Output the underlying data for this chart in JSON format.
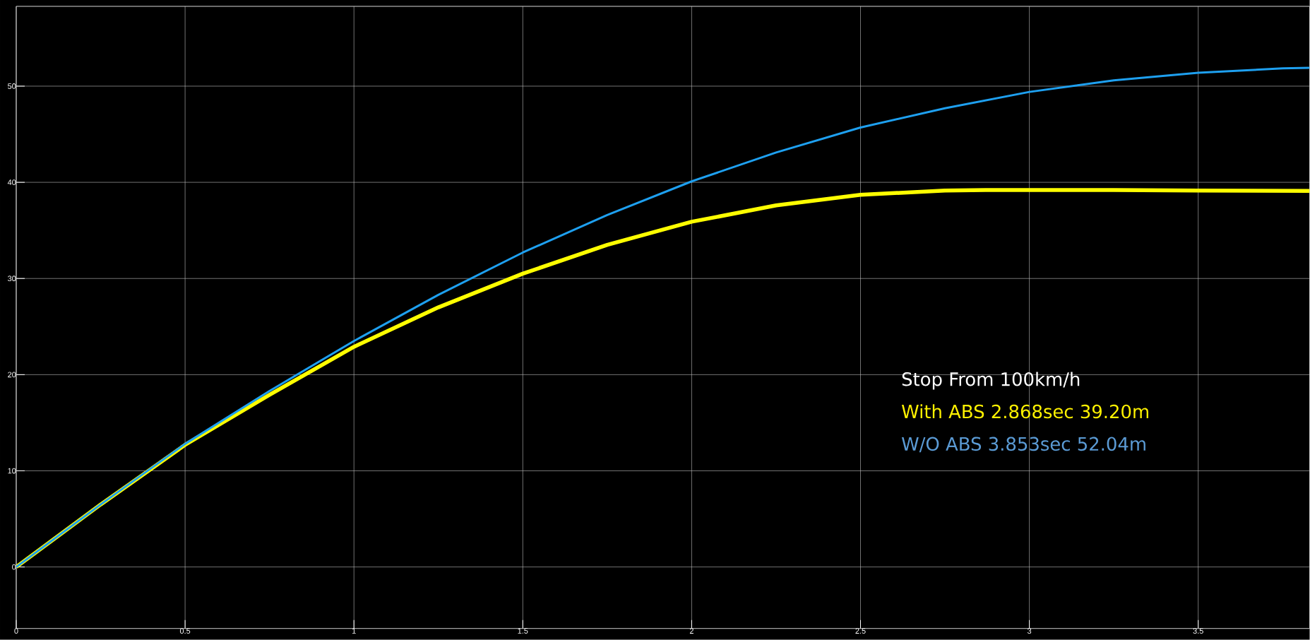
{
  "chart_data": {
    "type": "line",
    "xlim": [
      0,
      3.83
    ],
    "ylim": [
      -6.4,
      58.3
    ],
    "xticks": [
      0,
      0.5,
      1,
      1.5,
      2,
      2.5,
      3,
      3.5
    ],
    "yticks": [
      0,
      10,
      20,
      30,
      40,
      50
    ],
    "grid": true,
    "series": [
      {
        "color": "#ffff00",
        "x": [
          0,
          0.25,
          0.5,
          0.75,
          1,
          1.25,
          1.5,
          1.75,
          2,
          2.25,
          2.5,
          2.75,
          2.87,
          3,
          3.25,
          3.5,
          3.83
        ],
        "values": [
          0,
          6.5,
          12.7,
          17.9,
          22.9,
          27.0,
          30.5,
          33.5,
          35.9,
          37.6,
          38.7,
          39.15,
          39.2,
          39.2,
          39.2,
          39.15,
          39.1
        ]
      },
      {
        "color": "#1ea0f0",
        "x": [
          0,
          0.25,
          0.5,
          0.75,
          1,
          1.25,
          1.5,
          1.75,
          2,
          2.25,
          2.5,
          2.75,
          3,
          3.25,
          3.5,
          3.75,
          3.83
        ],
        "values": [
          0,
          6.5,
          12.8,
          18.3,
          23.5,
          28.3,
          32.7,
          36.6,
          40.1,
          43.1,
          45.7,
          47.7,
          49.4,
          50.6,
          51.4,
          51.85,
          51.9
        ]
      }
    ],
    "annotations": [
      "Stop From 100km/h",
      "With ABS 2.868sec 39.20m",
      "W/O ABS 3.853sec 52.04m"
    ]
  }
}
